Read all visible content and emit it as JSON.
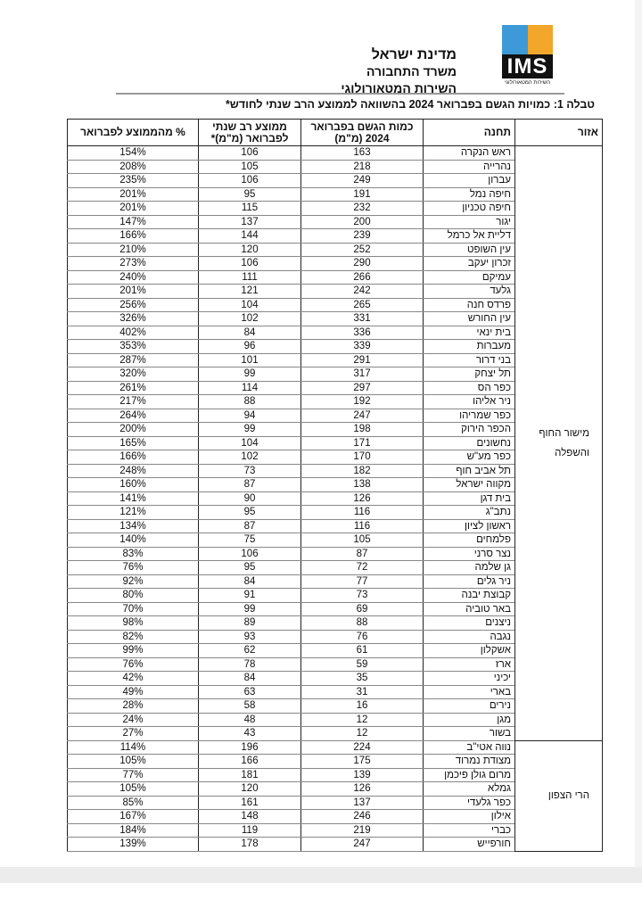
{
  "header": {
    "logo_text": "IMS",
    "logo_subtext": "השירות המטאורולוגי",
    "logo_colors": [
      "#3d9ad6",
      "#f2a62a",
      "#7ab8e0",
      "#f5b842"
    ],
    "org_line1": "מדינת ישראל",
    "org_line2": "משרד התחבורה",
    "org_line3": "השירות המטאורולוגי"
  },
  "caption": "טבלה 1: כמויות הגשם בפברואר 2024 בהשוואה לממוצע הרב שנתי לחודש*",
  "table": {
    "columns": {
      "region": "אזור",
      "station": "תחנה",
      "rain": "כמות הגשם בפברואר 2024 (מ\"מ)",
      "avg": "ממוצע רב שנתי לפברואר (מ\"מ)*",
      "pct": "% מהממוצע לפברואר"
    },
    "regions": [
      {
        "name": "מישור החוף והשפלה",
        "rows": [
          [
            "ראש הנקרה",
            "163",
            "106",
            "154%"
          ],
          [
            "נהרייה",
            "218",
            "105",
            "208%"
          ],
          [
            "עברון",
            "249",
            "106",
            "235%"
          ],
          [
            "חיפה נמל",
            "191",
            "95",
            "201%"
          ],
          [
            "חיפה טכניון",
            "232",
            "115",
            "201%"
          ],
          [
            "יגור",
            "200",
            "137",
            "147%"
          ],
          [
            "דליית אל כרמל",
            "239",
            "144",
            "166%"
          ],
          [
            "עין השופט",
            "252",
            "120",
            "210%"
          ],
          [
            "זכרון יעקב",
            "290",
            "106",
            "273%"
          ],
          [
            "עמיקם",
            "266",
            "111",
            "240%"
          ],
          [
            "גלעד",
            "242",
            "121",
            "201%"
          ],
          [
            "פרדס חנה",
            "265",
            "104",
            "256%"
          ],
          [
            "עין החורש",
            "331",
            "102",
            "326%"
          ],
          [
            "בית ינאי",
            "336",
            "84",
            "402%"
          ],
          [
            "מעברות",
            "339",
            "96",
            "353%"
          ],
          [
            "בני דרור",
            "291",
            "101",
            "287%"
          ],
          [
            "תל יצחק",
            "317",
            "99",
            "320%"
          ],
          [
            "כפר הס",
            "297",
            "114",
            "261%"
          ],
          [
            "ניר אליהו",
            "192",
            "88",
            "217%"
          ],
          [
            "כפר שמריהו",
            "247",
            "94",
            "264%"
          ],
          [
            "הכפר הירוק",
            "198",
            "99",
            "200%"
          ],
          [
            "נחשונים",
            "171",
            "104",
            "165%"
          ],
          [
            "כפר מע\"ש",
            "170",
            "102",
            "166%"
          ],
          [
            "תל אביב חוף",
            "182",
            "73",
            "248%"
          ],
          [
            "מקווה ישראל",
            "138",
            "87",
            "160%"
          ],
          [
            "בית דגן",
            "126",
            "90",
            "141%"
          ],
          [
            "נתב\"ג",
            "116",
            "95",
            "121%"
          ],
          [
            "ראשון לציון",
            "116",
            "87",
            "134%"
          ],
          [
            "פלמחים",
            "105",
            "75",
            "140%"
          ],
          [
            "נצר סרני",
            "87",
            "106",
            "83%"
          ],
          [
            "גן שלמה",
            "72",
            "95",
            "76%"
          ],
          [
            "ניר גלים",
            "77",
            "84",
            "92%"
          ],
          [
            "קבוצת יבנה",
            "73",
            "91",
            "80%"
          ],
          [
            "באר טוביה",
            "69",
            "99",
            "70%"
          ],
          [
            "ניצנים",
            "88",
            "89",
            "98%"
          ],
          [
            "נגבה",
            "76",
            "93",
            "82%"
          ],
          [
            "אשקלון",
            "61",
            "62",
            "99%"
          ],
          [
            "ארז",
            "59",
            "78",
            "76%"
          ],
          [
            "יכיני",
            "35",
            "84",
            "42%"
          ],
          [
            "בארי",
            "31",
            "63",
            "49%"
          ],
          [
            "נירים",
            "16",
            "58",
            "28%"
          ],
          [
            "מגן",
            "12",
            "48",
            "24%"
          ],
          [
            "בשור",
            "12",
            "43",
            "27%"
          ]
        ]
      },
      {
        "name": "הרי הצפון",
        "rows": [
          [
            "נווה אטי\"ב",
            "224",
            "196",
            "114%"
          ],
          [
            "מצודת נמרוד",
            "175",
            "166",
            "105%"
          ],
          [
            "מרום גולן פיכמן",
            "139",
            "181",
            "77%"
          ],
          [
            "גמלא",
            "126",
            "120",
            "105%"
          ],
          [
            "כפר גלעדי",
            "137",
            "161",
            "85%"
          ],
          [
            "אילון",
            "246",
            "148",
            "167%"
          ],
          [
            "כברי",
            "219",
            "119",
            "184%"
          ],
          [
            "חורפייש",
            "247",
            "178",
            "139%"
          ]
        ]
      }
    ]
  }
}
